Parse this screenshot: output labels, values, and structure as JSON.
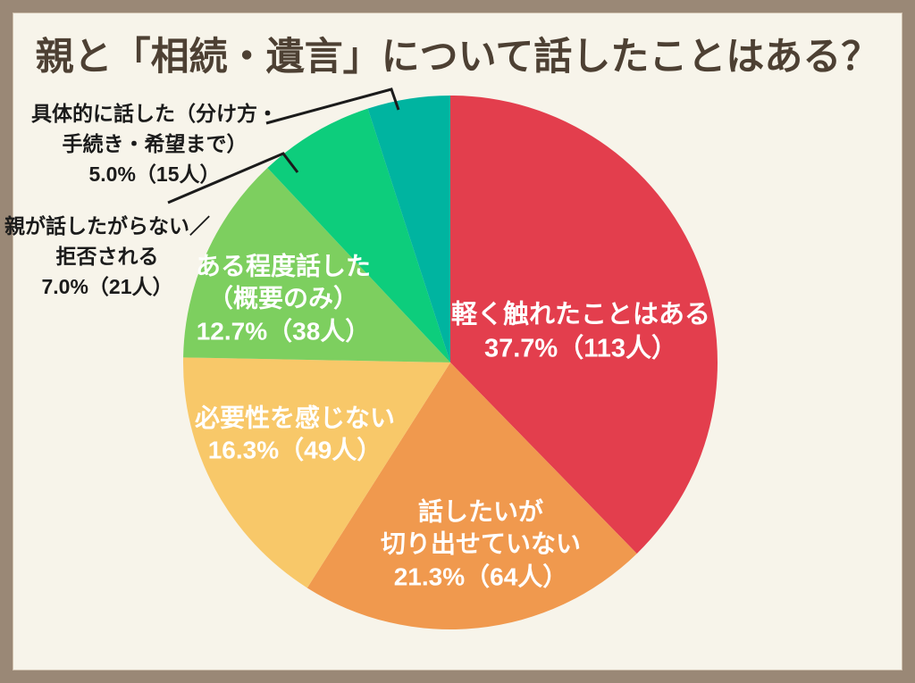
{
  "title": "親と「相続・遺言」について話したことはある？",
  "colors": {
    "background": "#F7F4EA",
    "frame": "#9A8876",
    "title_text": "#4D4033",
    "inside_label_text": "#FFFFFF",
    "outside_label_text": "#1B1B1B",
    "leader_line": "#1B1B1B"
  },
  "chart_data": {
    "type": "pie",
    "title": "親と「相続・遺言」について話したことはある？",
    "direction": "clockwise",
    "start_angle_deg": 0,
    "legend": "none",
    "unit": "人",
    "slices": [
      {
        "label": "軽く触れたことはある",
        "percent": 37.7,
        "count": 113,
        "color": "#E33E4D",
        "label_placement": "inside"
      },
      {
        "label": "話したいが切り出せていない",
        "percent": 21.3,
        "count": 64,
        "color": "#F0994E",
        "label_placement": "inside"
      },
      {
        "label": "必要性を感じない",
        "percent": 16.3,
        "count": 49,
        "color": "#F8C869",
        "label_placement": "inside"
      },
      {
        "label": "ある程度話した（概要のみ）",
        "percent": 12.7,
        "count": 38,
        "color": "#7DCF5F",
        "label_placement": "inside"
      },
      {
        "label": "親が話したがらない／拒否される",
        "percent": 7.0,
        "count": 21,
        "color": "#0DCD7C",
        "label_placement": "outside"
      },
      {
        "label": "具体的に話した（分け方・手続き・希望まで）",
        "percent": 5.0,
        "count": 15,
        "color": "#00B4A0",
        "label_placement": "outside"
      }
    ]
  },
  "labels": {
    "light_touch": {
      "lines": [
        "軽く触れたことはある",
        "37.7%（113人）"
      ]
    },
    "want_to_talk": {
      "lines": [
        "話したいが",
        "切り出せていない",
        "21.3%（64人）"
      ]
    },
    "no_need": {
      "lines": [
        "必要性を感じない",
        "16.3%（49人）"
      ]
    },
    "somewhat": {
      "lines": [
        "ある程度話した",
        "（概要のみ）",
        "12.7%（38人）"
      ]
    },
    "concrete": {
      "lines": [
        "具体的に話した（分け方・",
        "手続き・希望まで）",
        "5.0%（15人）"
      ]
    },
    "refused": {
      "lines": [
        "親が話したがらない／",
        "拒否される",
        "7.0%（21人）"
      ]
    }
  }
}
